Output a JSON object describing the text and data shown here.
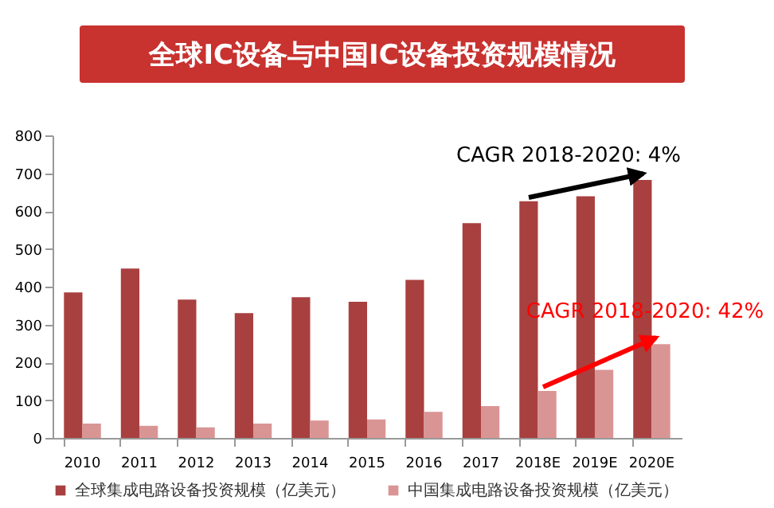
{
  "chart_data": {
    "type": "bar",
    "title": "全球IC设备与中国IC设备投资规模情况",
    "categories": [
      "2010",
      "2011",
      "2012",
      "2013",
      "2014",
      "2015",
      "2016",
      "2017",
      "2018E",
      "2019E",
      "2020E"
    ],
    "series": [
      {
        "name": "全球集成电路设备投资规模（亿美元）",
        "color": "#a8403f",
        "values": [
          385,
          448,
          366,
          330,
          372,
          360,
          418,
          568,
          626,
          639,
          682
        ]
      },
      {
        "name": "中国集成电路设备投资规模（亿美元）",
        "color": "#d99594",
        "values": [
          38,
          32,
          28,
          38,
          46,
          49,
          69,
          84,
          124,
          180,
          248
        ]
      }
    ],
    "annotations": [
      "CAGR 2018-2020: 4%",
      "CAGR 2018-2020: 42%"
    ],
    "ylim": [
      0,
      800
    ],
    "yticks": [
      0,
      100,
      200,
      300,
      400,
      500,
      600,
      700,
      800
    ],
    "grid": false,
    "legend": "bottom"
  }
}
